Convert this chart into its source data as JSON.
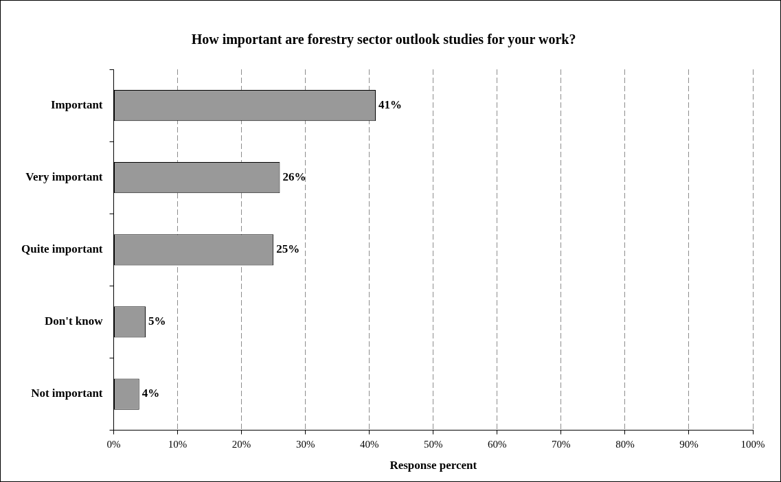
{
  "chart_data": {
    "type": "bar",
    "orientation": "horizontal",
    "title": "How important are forestry sector outlook studies for your work?",
    "xlabel": "Response percent",
    "categories": [
      "Important",
      "Very important",
      "Quite important",
      "Don't know",
      "Not important"
    ],
    "values": [
      41,
      26,
      25,
      5,
      4
    ],
    "value_labels": [
      "41%",
      "26%",
      "25%",
      "5%",
      "4%"
    ],
    "color": "#999999",
    "xlim": [
      0,
      100
    ],
    "xticks": [
      {
        "value": 0,
        "label": "0%"
      },
      {
        "value": 10,
        "label": "10%"
      },
      {
        "value": 20,
        "label": "20%"
      },
      {
        "value": 30,
        "label": "30%"
      },
      {
        "value": 40,
        "label": "40%"
      },
      {
        "value": 50,
        "label": "50%"
      },
      {
        "value": 60,
        "label": "60%"
      },
      {
        "value": 70,
        "label": "70%"
      },
      {
        "value": 80,
        "label": "80%"
      },
      {
        "value": 90,
        "label": "90%"
      },
      {
        "value": 100,
        "label": "100%"
      }
    ],
    "grid": "x",
    "legend": false
  }
}
